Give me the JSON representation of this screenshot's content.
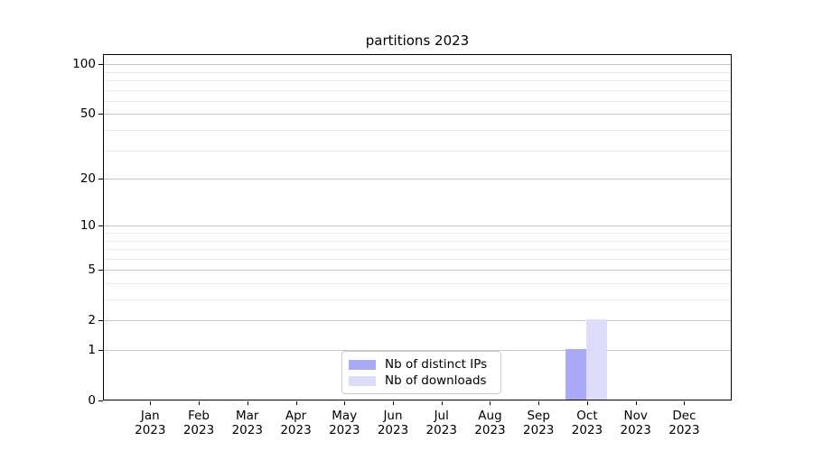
{
  "chart_data": {
    "type": "bar",
    "title": "partitions 2023",
    "categories": [
      "Jan",
      "Feb",
      "Mar",
      "Apr",
      "May",
      "Jun",
      "Jul",
      "Aug",
      "Sep",
      "Oct",
      "Nov",
      "Dec"
    ],
    "x_tick_second_line": "2023",
    "series": [
      {
        "name": "Nb of distinct IPs",
        "color": "#a9a9f7",
        "values": [
          0,
          0,
          0,
          0,
          0,
          0,
          0,
          0,
          0,
          1,
          0,
          0
        ]
      },
      {
        "name": "Nb of downloads",
        "color": "#dcdcf8",
        "values": [
          0,
          0,
          0,
          0,
          0,
          0,
          0,
          0,
          0,
          2,
          0,
          0
        ]
      }
    ],
    "yscale": "log1p",
    "ylim": [
      0,
      115
    ],
    "y_major_ticks": [
      0,
      1,
      2,
      5,
      10,
      20,
      50,
      100
    ],
    "y_minor_gridlines": [
      3,
      4,
      6,
      7,
      8,
      9,
      30,
      40,
      60,
      70,
      80,
      90
    ],
    "grid": true,
    "legend_position": "lower center",
    "colors": {
      "major_grid": "#c6c6c6",
      "minor_grid": "#e9e9e9",
      "axis": "#000000",
      "background": "#ffffff",
      "legend_border": "#cccccc"
    }
  }
}
